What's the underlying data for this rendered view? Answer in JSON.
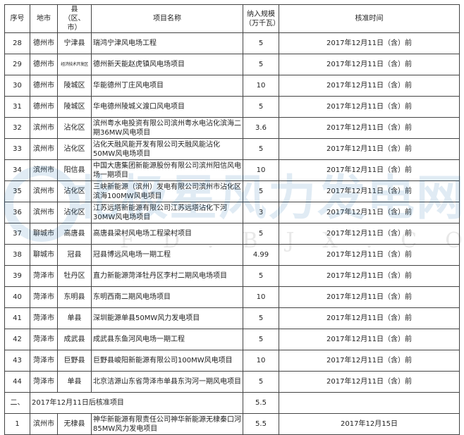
{
  "headers": [
    "序号",
    "地市",
    "县\n（区、市）",
    "项目名称",
    "纳入规模\n（万千瓦）",
    "核准时间"
  ],
  "rows": [
    {
      "no": "28",
      "city": "德州市",
      "county": "宁津县",
      "name": "瑞鸿宁津风电场工程",
      "scale": "5",
      "date": "2017年12月11日（含）前"
    },
    {
      "no": "29",
      "city": "德州市",
      "county": "经济技术开发区",
      "name": "德州新天能赵虎镇风电场项目",
      "scale": "5",
      "date": "2017年12月11日（含）前"
    },
    {
      "no": "30",
      "city": "德州市",
      "county": "陵城区",
      "name": "华能德州丁庄风电项目",
      "scale": "10",
      "date": "2017年12月11日（含）前"
    },
    {
      "no": "31",
      "city": "德州市",
      "county": "陵城区",
      "name": "华电德州陵城义渡口风电项目",
      "scale": "5",
      "date": "2017年12月11日（含）前"
    },
    {
      "no": "32",
      "city": "滨州市",
      "county": "沾化区",
      "name": "滨州粤水电投资有限公司滨州粤水电沾化滨海二期36MW风电项目",
      "scale": "3.6",
      "date": "2017年12月11日（含）前"
    },
    {
      "no": "33",
      "city": "滨州市",
      "county": "沾化区",
      "name": "沾化天融风能开发有限公司天融风能沾化50MW风电场项目",
      "scale": "5",
      "date": "2017年12月11日（含）前"
    },
    {
      "no": "34",
      "city": "滨州市",
      "county": "阳信县",
      "name": "中国大唐集团新能源股份有限公司滨州阳信风电场一期项目",
      "scale": "10",
      "date": "2017年12月11日（含）前"
    },
    {
      "no": "35",
      "city": "滨州市",
      "county": "沾化区",
      "name": "三峡新能源（滨州）发电有限公司滨州市沾化区滨海100MW风电项目",
      "scale": "5",
      "date": "2017年12月11日（含）前"
    },
    {
      "no": "36",
      "city": "滨州市",
      "county": "沾化区",
      "name": "江苏远塔新能源有限公司江苏远塔沾化下河30MW风电场项目",
      "scale": "3",
      "date": "2017年12月11日（含）前"
    },
    {
      "no": "37",
      "city": "聊城市",
      "county": "高唐县",
      "name": "高唐县梁村风电场工程梁村项目",
      "scale": "5",
      "date": "2017年12月11日（含）前"
    },
    {
      "no": "38",
      "city": "聊城市",
      "county": "冠县",
      "name": "冠县博远风电场一期工程",
      "scale": "4.99",
      "date": "2017年12月11日（含）前"
    },
    {
      "no": "39",
      "city": "菏泽市",
      "county": "牡丹区",
      "name": "直力新能源菏泽牡丹区李村二期风电场项目",
      "scale": "5",
      "date": "2017年12月11日（含）前"
    },
    {
      "no": "40",
      "city": "菏泽市",
      "county": "东明县",
      "name": "东明西南二期风电场项目",
      "scale": "10",
      "date": "2017年12月11日（含）前"
    },
    {
      "no": "41",
      "city": "菏泽市",
      "county": "单县",
      "name": "深圳能源单县50MW风力发电项目",
      "scale": "5",
      "date": "2017年12月11日（含）前"
    },
    {
      "no": "42",
      "city": "菏泽市",
      "county": "成武县",
      "name": "成武县东鱼河风电场一期工程",
      "scale": "5",
      "date": "2017年12月11日（含）前"
    },
    {
      "no": "43",
      "city": "菏泽市",
      "county": "巨野县",
      "name": "巨野县峻阳新能源有限公司100MW风电项目",
      "scale": "10",
      "date": "2017年12月11日（含）前"
    },
    {
      "no": "44",
      "city": "菏泽市",
      "county": "单县",
      "name": "北京洁源山东省菏泽市单县东沟河一期风电项目",
      "scale": "5",
      "date": "2017年12月11日（含）前"
    }
  ],
  "section": {
    "no": "二、",
    "title": "2017年12月11日后核准项目",
    "scale": "5.5"
  },
  "section_rows": [
    {
      "no": "1",
      "city": "滨州市",
      "county": "无棣县",
      "name": "神华新能源有限责任公司神华新能源无棣秦口河85MW风力发电项目",
      "scale": "5.5",
      "date": "2017年12月15日"
    }
  ],
  "watermark": {
    "brand": "北极星风力发电网",
    "url": "FD.BJX.COM.CN"
  }
}
